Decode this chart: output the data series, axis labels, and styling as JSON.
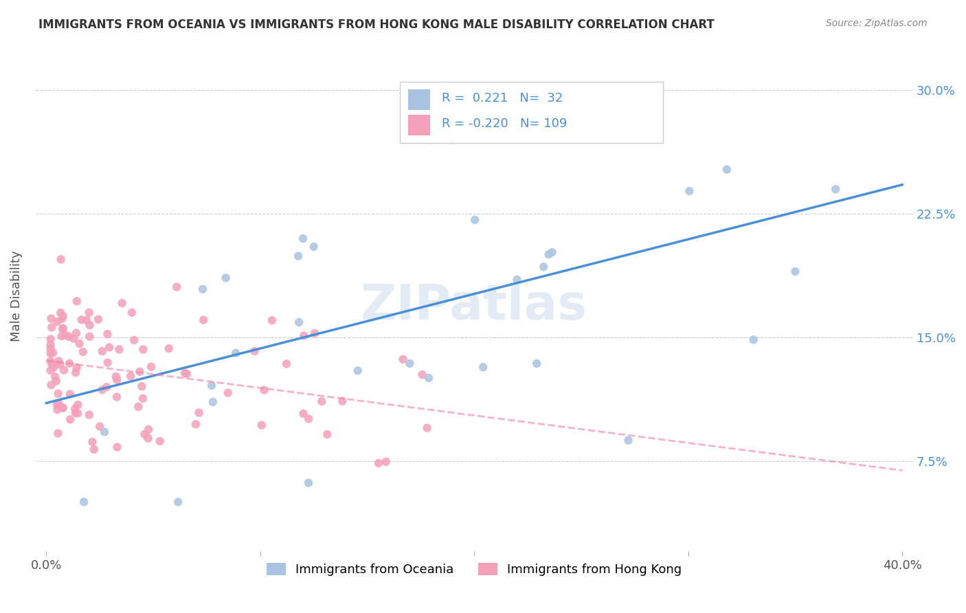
{
  "title": "IMMIGRANTS FROM OCEANIA VS IMMIGRANTS FROM HONG KONG MALE DISABILITY CORRELATION CHART",
  "source": "Source: ZipAtlas.com",
  "ylabel": "Male Disability",
  "y_ticks": [
    0.075,
    0.15,
    0.225,
    0.3
  ],
  "y_tick_labels": [
    "7.5%",
    "15.0%",
    "22.5%",
    "30.0%"
  ],
  "r_oceania": 0.221,
  "n_oceania": 32,
  "r_hongkong": -0.22,
  "n_hongkong": 109,
  "watermark": "ZIPatlas",
  "color_oceania": "#a8c4e0",
  "color_hongkong": "#f4a0b8",
  "line_oceania": "#4a90d9",
  "line_hongkong": "#f080a0"
}
